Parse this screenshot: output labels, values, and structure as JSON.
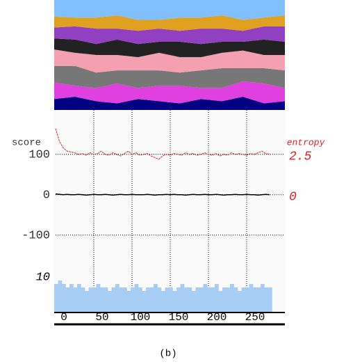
{
  "chart_data": [
    {
      "type": "stacked_area",
      "x": [
        0,
        25,
        50,
        75,
        100,
        125,
        150,
        175,
        200,
        225,
        250,
        275
      ],
      "xlim": [
        0,
        300
      ],
      "ylim": [
        0,
        100
      ],
      "series": [
        {
          "color": "#000080",
          "values": [
            10,
            12,
            8,
            6,
            10,
            8,
            6,
            10,
            8,
            12,
            6,
            8
          ]
        },
        {
          "color": "#e040e0",
          "values": [
            15,
            10,
            12,
            18,
            10,
            14,
            16,
            10,
            12,
            14,
            18,
            12
          ]
        },
        {
          "color": "#777777",
          "values": [
            15,
            18,
            14,
            12,
            16,
            14,
            12,
            16,
            18,
            12,
            14,
            16
          ]
        },
        {
          "color": "#f4a0b0",
          "values": [
            15,
            12,
            16,
            14,
            12,
            16,
            14,
            12,
            14,
            16,
            12,
            14
          ]
        },
        {
          "color": "#222222",
          "values": [
            10,
            12,
            10,
            14,
            12,
            10,
            14,
            12,
            10,
            8,
            14,
            12
          ]
        },
        {
          "color": "#9040c0",
          "values": [
            10,
            12,
            14,
            10,
            12,
            12,
            10,
            14,
            12,
            10,
            12,
            14
          ]
        },
        {
          "color": "#e0a020",
          "values": [
            10,
            8,
            10,
            12,
            10,
            8,
            12,
            10,
            12,
            10,
            8,
            10
          ]
        },
        {
          "color": "#80c0ff",
          "values": [
            15,
            16,
            16,
            14,
            18,
            18,
            16,
            16,
            14,
            18,
            16,
            14
          ]
        }
      ]
    },
    {
      "type": "line",
      "y_label": "score",
      "y2_label": "entropy",
      "x": [
        0,
        5,
        10,
        15,
        20,
        25,
        30,
        35,
        40,
        45,
        50,
        55,
        60,
        65,
        70,
        75,
        80,
        85,
        90,
        95,
        100,
        105,
        110,
        115,
        120,
        125,
        130,
        135,
        140,
        145,
        150,
        155,
        160,
        165,
        170,
        175,
        180,
        185,
        190,
        195,
        200,
        205,
        210,
        215,
        220,
        225,
        230,
        235,
        240,
        245,
        250,
        255,
        260,
        265,
        270,
        275,
        280
      ],
      "xlim": [
        0,
        300
      ],
      "xticks": [
        0,
        50,
        100,
        150,
        200,
        250
      ],
      "ylim": [
        -290,
        210
      ],
      "yticks": [
        100,
        0,
        -100
      ],
      "y2lim": [
        -7.25,
        5.25
      ],
      "y2ticks": [
        2.5,
        0
      ],
      "grid": true,
      "series": [
        {
          "color": "#000000",
          "values": [
            2,
            1,
            0,
            1,
            0,
            0,
            1,
            0,
            -1,
            0,
            1,
            0,
            0,
            1,
            0,
            -1,
            0,
            1,
            0,
            0,
            1,
            0,
            0,
            0,
            1,
            0,
            -1,
            0,
            0,
            1,
            0,
            1,
            0,
            0,
            -1,
            0,
            1,
            0,
            0,
            1,
            0,
            0,
            1,
            0,
            -1,
            0,
            0,
            1,
            0,
            0,
            1,
            0,
            0,
            -1,
            0,
            1,
            0
          ]
        },
        {
          "color": "#e02020",
          "axis": "y2",
          "values": [
            4.1,
            3.3,
            2.9,
            2.7,
            2.65,
            2.6,
            2.5,
            2.55,
            2.45,
            2.6,
            2.5,
            2.55,
            2.7,
            2.5,
            2.45,
            2.6,
            2.5,
            2.4,
            2.55,
            2.7,
            2.5,
            2.6,
            2.45,
            2.5,
            2.55,
            2.4,
            2.3,
            2.2,
            2.4,
            2.5,
            2.45,
            2.55,
            2.5,
            2.45,
            2.6,
            2.5,
            2.55,
            2.45,
            2.5,
            2.6,
            2.5,
            2.45,
            2.55,
            2.4,
            2.5,
            2.45,
            2.6,
            2.5,
            2.55,
            2.5,
            2.45,
            2.55,
            2.5,
            2.6,
            2.7,
            2.55,
            2.5
          ]
        }
      ]
    },
    {
      "type": "bar",
      "color": "#a8cdf5",
      "x": [
        0,
        5,
        10,
        15,
        20,
        25,
        30,
        35,
        40,
        45,
        50,
        55,
        60,
        65,
        70,
        75,
        80,
        85,
        90,
        95,
        100,
        105,
        110,
        115,
        120,
        125,
        130,
        135,
        140,
        145,
        150,
        155,
        160,
        165,
        170,
        175,
        180,
        185,
        190,
        195,
        200,
        205,
        210,
        215,
        220,
        225,
        230,
        235,
        240,
        245,
        250,
        255,
        260,
        265,
        270,
        275,
        280
      ],
      "xlim": [
        0,
        300
      ],
      "ylim": [
        0,
        58
      ],
      "yticks": [
        10
      ],
      "values": [
        8,
        9,
        8,
        7,
        8,
        7,
        8,
        7,
        6,
        7,
        7,
        8,
        7,
        7,
        6,
        7,
        8,
        7,
        7,
        6,
        7,
        8,
        7,
        6,
        7,
        7,
        8,
        7,
        6,
        7,
        7,
        6,
        7,
        8,
        7,
        7,
        6,
        7,
        7,
        8,
        7,
        7,
        8,
        6,
        7,
        7,
        8,
        7,
        6,
        7,
        7,
        8,
        7,
        7,
        8,
        7,
        7
      ]
    }
  ],
  "caption": "(b)"
}
